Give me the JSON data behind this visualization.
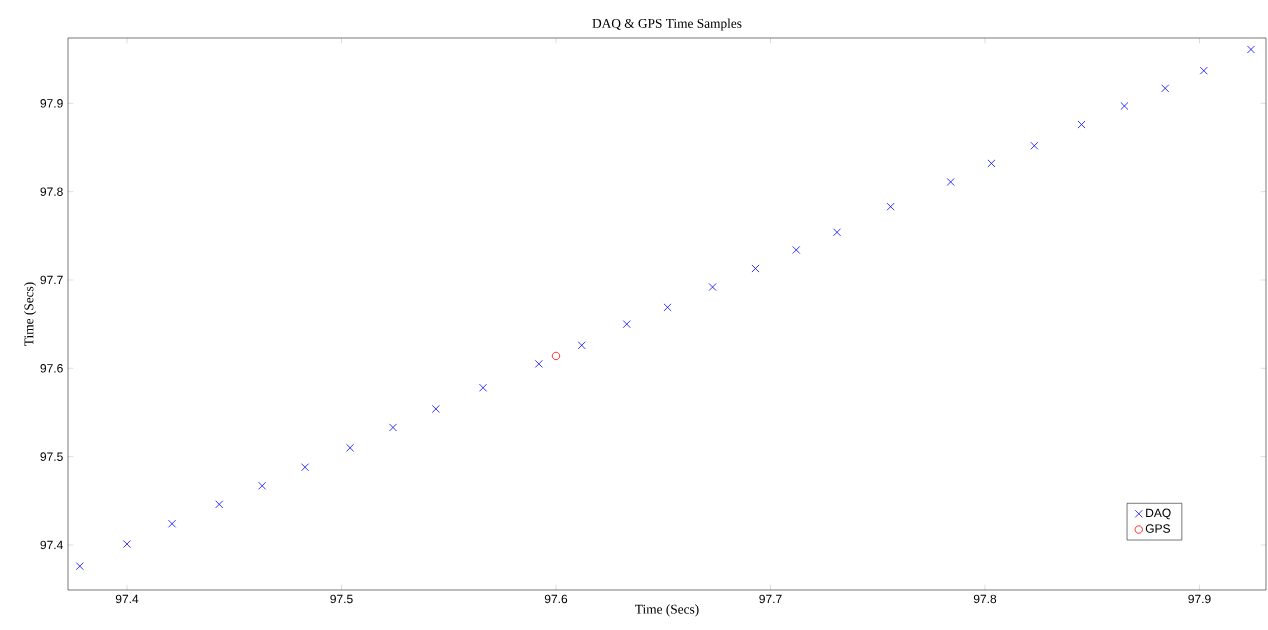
{
  "chart_data": {
    "type": "scatter",
    "title": "DAQ & GPS Time Samples",
    "xlabel": "Time (Secs)",
    "ylabel": "Time (Secs)",
    "xlim": [
      97.3725,
      97.931
    ],
    "ylim": [
      97.349,
      97.974
    ],
    "xticks": [
      97.4,
      97.5,
      97.6,
      97.7,
      97.8,
      97.9
    ],
    "yticks": [
      97.4,
      97.5,
      97.6,
      97.7,
      97.8,
      97.9
    ],
    "grid": false,
    "legend": "bottom right",
    "series": [
      {
        "name": "DAQ",
        "color": "#0000ff",
        "marker": "cross",
        "x": [
          97.378,
          97.4,
          97.421,
          97.443,
          97.463,
          97.483,
          97.504,
          97.524,
          97.544,
          97.566,
          97.592,
          97.612,
          97.633,
          97.652,
          97.673,
          97.693,
          97.712,
          97.731,
          97.756,
          97.784,
          97.803,
          97.823,
          97.845,
          97.865,
          97.884,
          97.902,
          97.924
        ],
        "values": [
          97.376,
          97.401,
          97.424,
          97.446,
          97.467,
          97.488,
          97.51,
          97.533,
          97.554,
          97.578,
          97.605,
          97.626,
          97.65,
          97.669,
          97.692,
          97.713,
          97.734,
          97.754,
          97.783,
          97.811,
          97.832,
          97.852,
          97.876,
          97.897,
          97.917,
          97.937,
          97.961
        ]
      },
      {
        "name": "GPS",
        "color": "#ff0000",
        "marker": "circle",
        "x": [
          97.6
        ],
        "values": [
          97.614
        ]
      }
    ]
  }
}
